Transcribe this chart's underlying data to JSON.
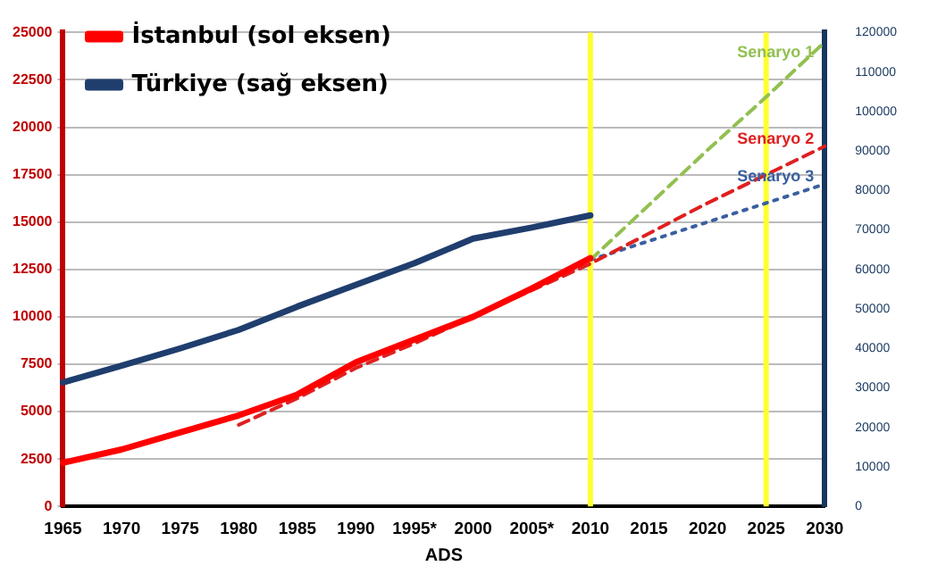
{
  "chart_data": {
    "type": "line",
    "xlabel": "ADS",
    "categories": [
      "1965",
      "1970",
      "1975",
      "1980",
      "1985",
      "1990",
      "1995*",
      "2000",
      "2005*",
      "2010",
      "2015",
      "2020",
      "2025",
      "2030"
    ],
    "series": [
      {
        "name": "İstanbul (sol eksen)",
        "color": "#ff0000",
        "line_style": "solid",
        "values": [
          2300,
          3000,
          3900,
          4800,
          5900,
          7600,
          8800,
          10000,
          11500,
          13100,
          null,
          null,
          null,
          null
        ]
      },
      {
        "name": "Türkiye (sağ eksen)",
        "color": "#1f3e6e",
        "axis": "y2",
        "line_style": "solid",
        "values": [
          31400,
          35600,
          40000,
          44700,
          50600,
          56100,
          61600,
          67800,
          70600,
          73700,
          null,
          null,
          null,
          null
        ]
      },
      {
        "name": "Senaryo 1",
        "color": "#92c050",
        "line_style": "dashed",
        "values": [
          null,
          null,
          null,
          null,
          null,
          null,
          null,
          null,
          null,
          13000,
          15900,
          18800,
          21600,
          24500
        ]
      },
      {
        "name": "Senaryo 2",
        "color": "#e02020",
        "line_style": "dashed",
        "values": [
          null,
          null,
          null,
          4300,
          5700,
          7300,
          8600,
          10000,
          11400,
          12800,
          14400,
          16000,
          17500,
          19000
        ]
      },
      {
        "name": "Senaryo 3",
        "color": "#3a5fa0",
        "line_style": "dotted",
        "values": [
          null,
          null,
          null,
          null,
          null,
          null,
          null,
          null,
          null,
          13000,
          14000,
          15000,
          16000,
          17000
        ]
      }
    ],
    "ylim": [
      0,
      25000
    ],
    "yticks": [
      0,
      2500,
      5000,
      7500,
      10000,
      12500,
      15000,
      17500,
      20000,
      22500,
      25000
    ],
    "y2lim": [
      0,
      120000
    ],
    "y2ticks": [
      0,
      10000,
      20000,
      30000,
      40000,
      50000,
      60000,
      70000,
      80000,
      90000,
      100000,
      110000,
      120000
    ],
    "ref_lines": [
      {
        "axis": "x",
        "value": "2010",
        "color": "#ffff33"
      },
      {
        "axis": "x",
        "value": "2025",
        "color": "#ffff33"
      }
    ],
    "grid": "y",
    "legend": "top left",
    "marker": "none"
  }
}
